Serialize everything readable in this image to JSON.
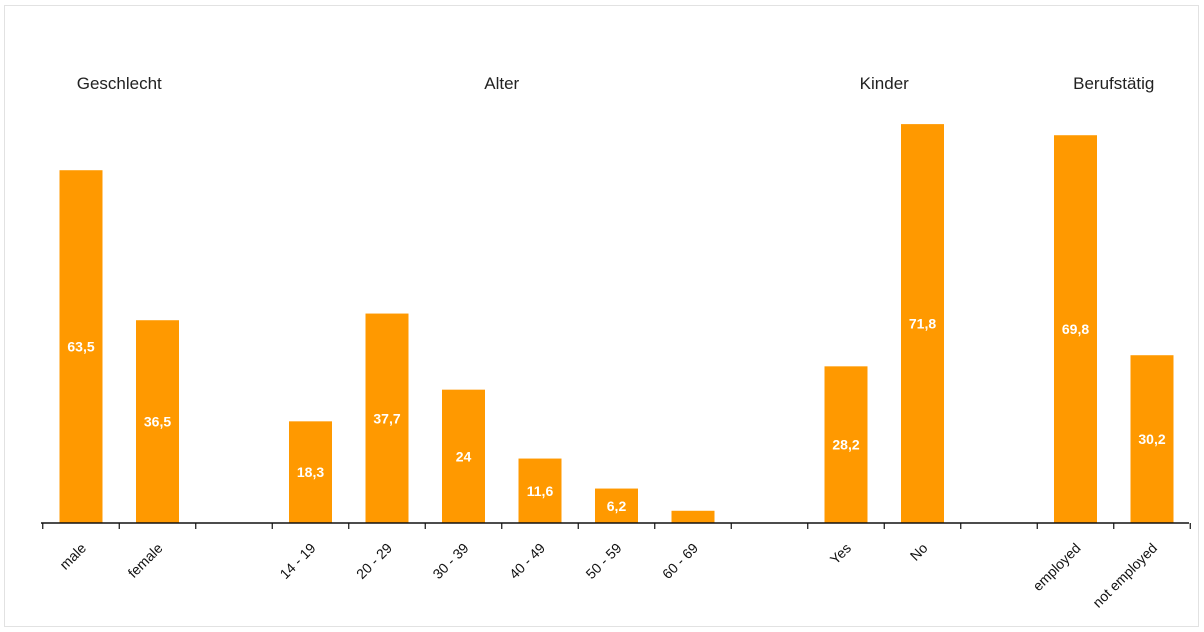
{
  "chart_data": {
    "type": "bar",
    "groups": [
      {
        "title": "Geschlecht",
        "categories": [
          "male",
          "female"
        ],
        "values": [
          63.5,
          36.5
        ],
        "labels": [
          "63,5",
          "36,5"
        ]
      },
      {
        "title": "Alter",
        "categories": [
          "14 - 19",
          "20 - 29",
          "30 - 39",
          "40 - 49",
          "50 - 59",
          "60 - 69"
        ],
        "values": [
          18.3,
          37.7,
          24,
          11.6,
          6.2,
          2.2
        ],
        "labels": [
          "18,3",
          "37,7",
          "24",
          "11,6",
          "6,2",
          ""
        ]
      },
      {
        "title": "Kinder",
        "categories": [
          "Yes",
          "No"
        ],
        "values": [
          28.2,
          71.8
        ],
        "labels": [
          "28,2",
          "71,8"
        ]
      },
      {
        "title": "Berufstätig",
        "categories": [
          "employed",
          "not employed"
        ],
        "values": [
          69.8,
          30.2
        ],
        "labels": [
          "69,8",
          "30,2"
        ]
      }
    ],
    "ylim": [
      0,
      72
    ],
    "grid": false,
    "legend": "none",
    "bar_color": "#ff9900",
    "label_color": "#ffffff"
  }
}
